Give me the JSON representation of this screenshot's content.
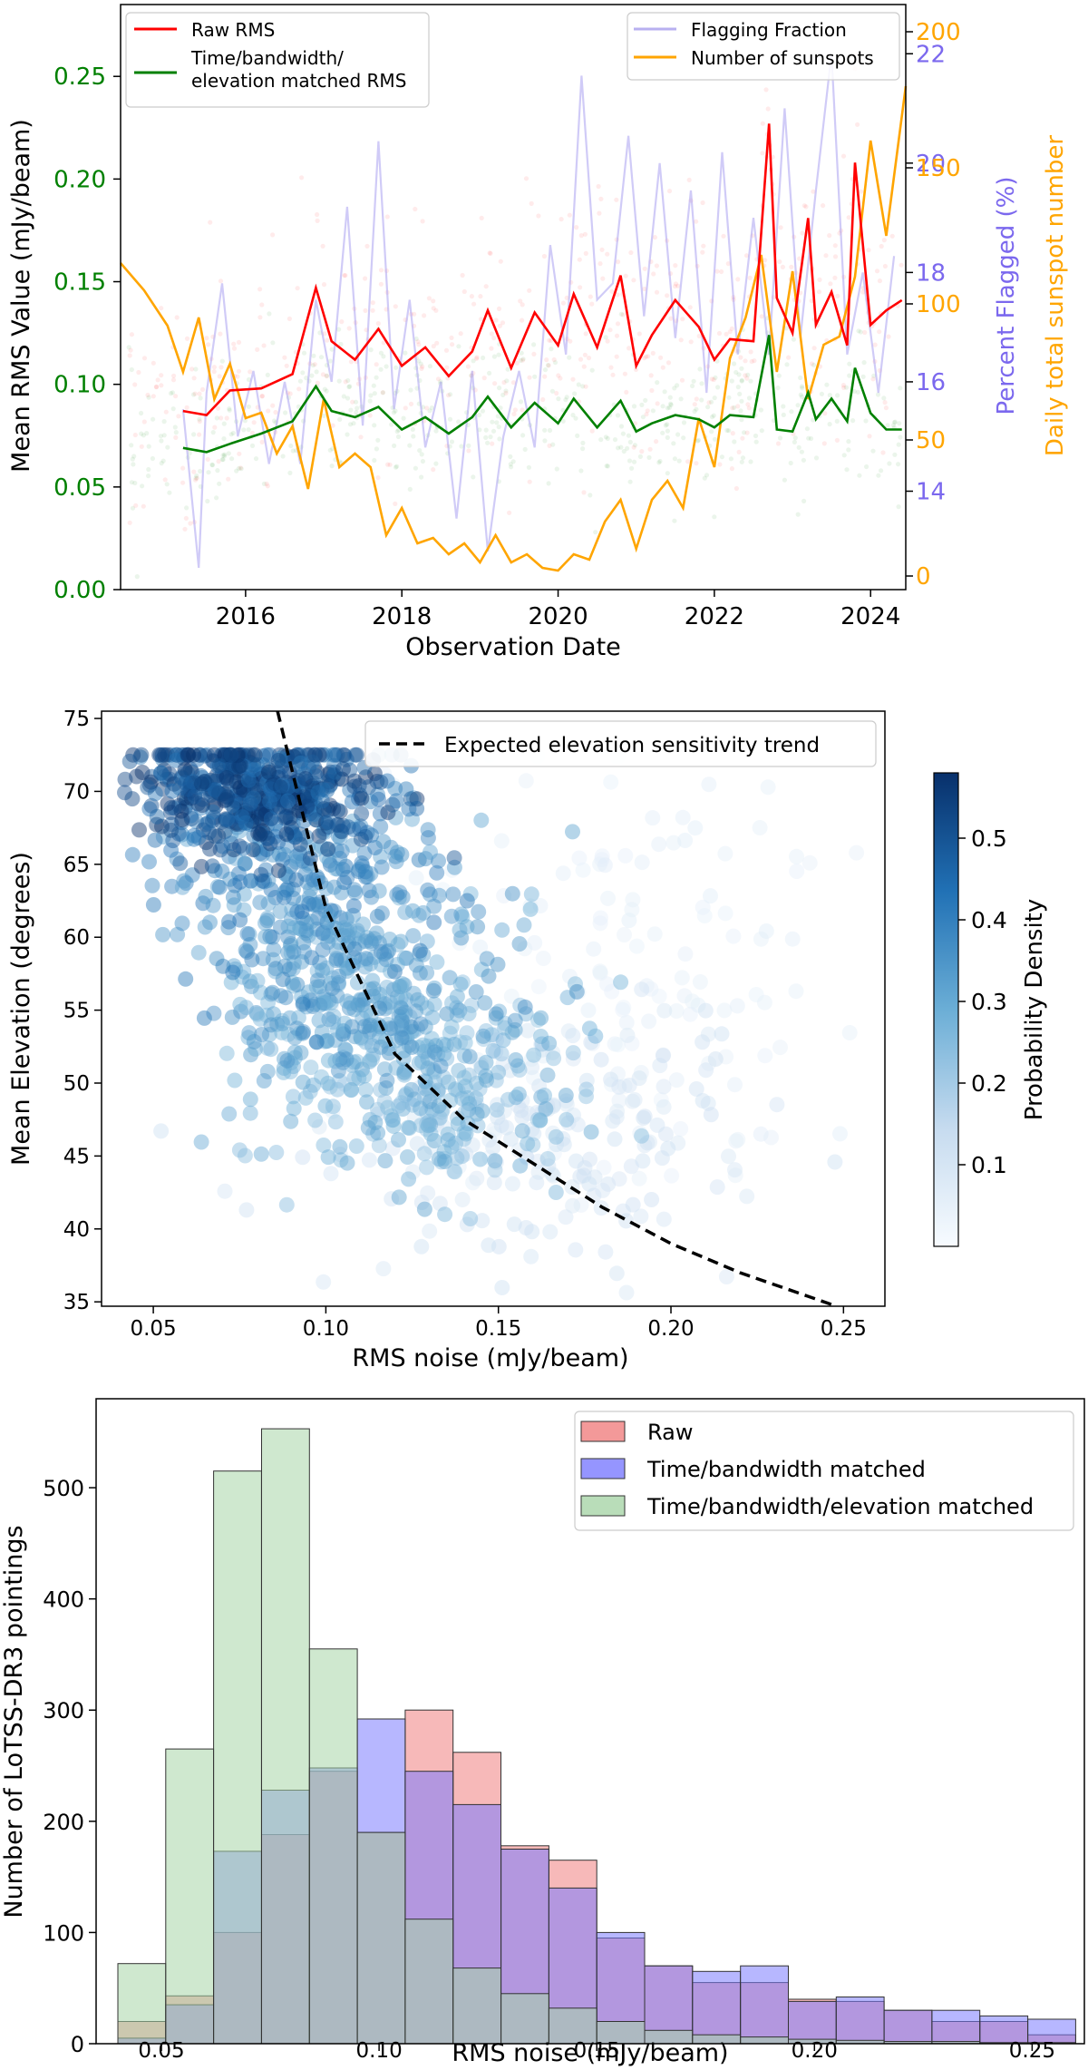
{
  "colors": {
    "raw": "#ff0000",
    "matched": "#008000",
    "flag": "#9999ee",
    "sun": "#ffa500",
    "green_axis": "#008000",
    "purple_axis": "#7b68ee",
    "orange_axis": "#ffa500",
    "hist_raw": "#f08080",
    "hist_tb": "#7b7bff",
    "hist_tbe": "#a8d5a8",
    "scatter": "#2f7fc0",
    "trend": "#000000"
  },
  "chart_data": [
    {
      "type": "line",
      "xlabel": "Observation Date",
      "ylabel": "Mean RMS Value (mJy/beam)",
      "ylabel_right1": "Percent Flagged (%)",
      "ylabel_right2": "Daily total sunspot number",
      "xlim": [
        2014.4,
        2024.45
      ],
      "ylim": [
        0.0,
        0.285
      ],
      "ylim_right1": [
        12.2,
        22.9
      ],
      "ylim_right2": [
        -5,
        210
      ],
      "xticks": [
        2016,
        2018,
        2020,
        2022,
        2024
      ],
      "xtick_labels": [
        "2016",
        "2018",
        "2020",
        "2022",
        "2024"
      ],
      "yticks": [
        0.0,
        0.05,
        0.1,
        0.15,
        0.2,
        0.25
      ],
      "ytick_labels": [
        "0.00",
        "0.05",
        "0.10",
        "0.15",
        "0.20",
        "0.25"
      ],
      "yticks_right1": [
        14,
        16,
        18,
        20,
        22
      ],
      "ytick_labels_right1": [
        "14",
        "16",
        "18",
        "20",
        "22"
      ],
      "yticks_right2": [
        0,
        50,
        100,
        150,
        200
      ],
      "ytick_labels_right2": [
        "0",
        "50",
        "100",
        "150",
        "200"
      ],
      "legend_left": [
        "Raw RMS",
        "Time/bandwidth/\nelevation matched RMS"
      ],
      "legend_right": [
        "Flagging Fraction",
        "Number of sunspots"
      ],
      "series": [
        {
          "name": "Raw RMS",
          "axis": "left",
          "x": [
            2015.2,
            2015.5,
            2015.8,
            2016.2,
            2016.6,
            2016.9,
            2017.1,
            2017.4,
            2017.7,
            2018.0,
            2018.3,
            2018.6,
            2018.9,
            2019.1,
            2019.4,
            2019.7,
            2020.0,
            2020.2,
            2020.5,
            2020.8,
            2021.0,
            2021.2,
            2021.5,
            2021.8,
            2022.0,
            2022.2,
            2022.5,
            2022.7,
            2022.8,
            2023.0,
            2023.2,
            2023.3,
            2023.5,
            2023.7,
            2023.8,
            2024.0,
            2024.2,
            2024.4
          ],
          "y": [
            0.087,
            0.085,
            0.097,
            0.098,
            0.105,
            0.147,
            0.121,
            0.112,
            0.127,
            0.109,
            0.118,
            0.104,
            0.116,
            0.136,
            0.108,
            0.135,
            0.119,
            0.144,
            0.118,
            0.153,
            0.109,
            0.124,
            0.141,
            0.128,
            0.112,
            0.122,
            0.121,
            0.227,
            0.142,
            0.125,
            0.181,
            0.129,
            0.145,
            0.119,
            0.208,
            0.129,
            0.136,
            0.141
          ]
        },
        {
          "name": "Time/bandwidth/elevation matched RMS",
          "axis": "left",
          "x": [
            2015.2,
            2015.5,
            2015.8,
            2016.2,
            2016.6,
            2016.9,
            2017.1,
            2017.4,
            2017.7,
            2018.0,
            2018.3,
            2018.6,
            2018.9,
            2019.1,
            2019.4,
            2019.7,
            2020.0,
            2020.2,
            2020.5,
            2020.8,
            2021.0,
            2021.2,
            2021.5,
            2021.8,
            2022.0,
            2022.2,
            2022.5,
            2022.7,
            2022.8,
            2023.0,
            2023.2,
            2023.3,
            2023.5,
            2023.7,
            2023.8,
            2024.0,
            2024.2,
            2024.4
          ],
          "y": [
            0.069,
            0.067,
            0.071,
            0.076,
            0.082,
            0.099,
            0.087,
            0.084,
            0.089,
            0.078,
            0.084,
            0.076,
            0.084,
            0.094,
            0.079,
            0.091,
            0.081,
            0.093,
            0.079,
            0.092,
            0.077,
            0.081,
            0.085,
            0.083,
            0.079,
            0.085,
            0.084,
            0.124,
            0.078,
            0.077,
            0.096,
            0.083,
            0.093,
            0.082,
            0.108,
            0.086,
            0.078,
            0.078
          ]
        },
        {
          "name": "Flagging Fraction",
          "axis": "right1",
          "x": [
            2015.2,
            2015.4,
            2015.5,
            2015.7,
            2015.9,
            2016.1,
            2016.3,
            2016.5,
            2016.7,
            2016.9,
            2017.1,
            2017.3,
            2017.5,
            2017.7,
            2017.9,
            2018.1,
            2018.3,
            2018.5,
            2018.7,
            2018.9,
            2019.1,
            2019.3,
            2019.5,
            2019.7,
            2019.9,
            2020.1,
            2020.3,
            2020.5,
            2020.7,
            2020.9,
            2021.1,
            2021.3,
            2021.5,
            2021.7,
            2021.9,
            2022.1,
            2022.3,
            2022.5,
            2022.7,
            2022.9,
            2023.1,
            2023.3,
            2023.5,
            2023.7,
            2023.9,
            2024.1,
            2024.3
          ],
          "y": [
            15.5,
            12.6,
            15.8,
            17.8,
            15.0,
            16.2,
            14.5,
            16.0,
            14.5,
            17.5,
            16.0,
            19.2,
            15.2,
            20.4,
            15.5,
            17.5,
            14.8,
            16.0,
            13.5,
            16.2,
            12.9,
            15.0,
            16.2,
            14.8,
            18.5,
            16.5,
            21.6,
            17.5,
            17.8,
            20.5,
            17.2,
            20.0,
            16.8,
            19.5,
            15.8,
            20.2,
            16.5,
            19.0,
            16.5,
            21.0,
            16.8,
            19.5,
            22.0,
            16.5,
            18.0,
            15.8,
            18.3
          ]
        },
        {
          "name": "Number of sunspots",
          "axis": "right2",
          "x": [
            2014.4,
            2014.7,
            2015.0,
            2015.2,
            2015.4,
            2015.6,
            2015.8,
            2016.0,
            2016.2,
            2016.4,
            2016.6,
            2016.8,
            2017.0,
            2017.2,
            2017.4,
            2017.6,
            2017.8,
            2018.0,
            2018.2,
            2018.4,
            2018.6,
            2018.8,
            2019.0,
            2019.2,
            2019.4,
            2019.6,
            2019.8,
            2020.0,
            2020.2,
            2020.4,
            2020.6,
            2020.8,
            2021.0,
            2021.2,
            2021.4,
            2021.6,
            2021.8,
            2022.0,
            2022.2,
            2022.4,
            2022.6,
            2022.8,
            2023.0,
            2023.2,
            2023.4,
            2023.6,
            2023.8,
            2024.0,
            2024.2,
            2024.45
          ],
          "y": [
            115,
            105,
            92,
            75,
            95,
            65,
            78,
            58,
            60,
            45,
            55,
            32,
            65,
            40,
            45,
            40,
            15,
            25,
            12,
            14,
            8,
            12,
            5,
            15,
            5,
            8,
            3,
            2,
            8,
            6,
            20,
            28,
            10,
            28,
            35,
            25,
            58,
            40,
            80,
            95,
            118,
            75,
            112,
            65,
            85,
            88,
            110,
            160,
            125,
            180
          ]
        }
      ]
    },
    {
      "type": "scatter",
      "xlabel": "RMS noise (mJy/beam)",
      "ylabel": "Mean Elevation (degrees)",
      "colorbar_label": "Probability Density",
      "xlim": [
        0.035,
        0.262
      ],
      "ylim": [
        34.7,
        75.5
      ],
      "xticks": [
        0.05,
        0.1,
        0.15,
        0.2,
        0.25
      ],
      "xtick_labels": [
        "0.05",
        "0.10",
        "0.15",
        "0.20",
        "0.25"
      ],
      "yticks": [
        35,
        40,
        45,
        50,
        55,
        60,
        65,
        70,
        75
      ],
      "ytick_labels": [
        "35",
        "40",
        "45",
        "50",
        "55",
        "60",
        "65",
        "70",
        "75"
      ],
      "colorbar_ticks": [
        0.1,
        0.2,
        0.3,
        0.4,
        0.5
      ],
      "colorbar_tick_labels": [
        "0.1",
        "0.2",
        "0.3",
        "0.4",
        "0.5"
      ],
      "colorbar_range": [
        0.0,
        0.58
      ],
      "legend": [
        "Expected elevation sensitivity trend"
      ],
      "clusters": [
        {
          "x": 0.08,
          "y": 70.0,
          "sx": 0.018,
          "sy": 2.0,
          "n": 900,
          "density": 0.55
        },
        {
          "x": 0.095,
          "y": 64.0,
          "sx": 0.02,
          "sy": 4.0,
          "n": 500,
          "density": 0.4
        },
        {
          "x": 0.11,
          "y": 56.0,
          "sx": 0.02,
          "sy": 4.0,
          "n": 550,
          "density": 0.35
        },
        {
          "x": 0.13,
          "y": 50.0,
          "sx": 0.022,
          "sy": 3.5,
          "n": 500,
          "density": 0.3
        },
        {
          "x": 0.165,
          "y": 46.0,
          "sx": 0.03,
          "sy": 4.5,
          "n": 350,
          "density": 0.12
        },
        {
          "x": 0.19,
          "y": 58.0,
          "sx": 0.035,
          "sy": 9.0,
          "n": 250,
          "density": 0.06
        }
      ],
      "trend_curve": {
        "x": [
          0.086,
          0.1,
          0.12,
          0.14,
          0.16,
          0.18,
          0.2,
          0.22,
          0.248
        ],
        "y": [
          75.5,
          62.0,
          52.0,
          47.5,
          44.5,
          41.5,
          39.0,
          37.0,
          34.7
        ]
      }
    },
    {
      "type": "histogram",
      "xlabel": "RMS noise (mJy/beam)",
      "ylabel": "Number of LoTSS-DR3 pointings",
      "xlim": [
        0.035,
        0.262
      ],
      "ylim": [
        0,
        580
      ],
      "xticks": [
        0.05,
        0.1,
        0.15,
        0.2,
        0.25
      ],
      "xtick_labels": [
        "0.05",
        "0.10",
        "0.15",
        "0.20",
        "0.25"
      ],
      "yticks": [
        0,
        100,
        200,
        300,
        400,
        500
      ],
      "ytick_labels": [
        "0",
        "100",
        "200",
        "300",
        "400",
        "500"
      ],
      "bin_edges": [
        0.04,
        0.051,
        0.062,
        0.073,
        0.084,
        0.095,
        0.106,
        0.117,
        0.128,
        0.139,
        0.15,
        0.161,
        0.172,
        0.183,
        0.194,
        0.205,
        0.216,
        0.227,
        0.238,
        0.249,
        0.26
      ],
      "series": [
        {
          "name": "Raw",
          "values": [
            20,
            43,
            100,
            188,
            245,
            190,
            300,
            262,
            178,
            165,
            95,
            70,
            55,
            55,
            40,
            38,
            30,
            20,
            20,
            8
          ]
        },
        {
          "name": "Time/bandwidth matched",
          "values": [
            5,
            35,
            173,
            228,
            248,
            292,
            245,
            215,
            175,
            140,
            100,
            70,
            65,
            70,
            38,
            42,
            30,
            30,
            25,
            22
          ]
        },
        {
          "name": "Time/bandwidth/elevation matched",
          "values": [
            72,
            265,
            515,
            553,
            355,
            190,
            112,
            68,
            45,
            32,
            20,
            12,
            8,
            6,
            4,
            3,
            2,
            2,
            1,
            1
          ]
        }
      ]
    }
  ]
}
